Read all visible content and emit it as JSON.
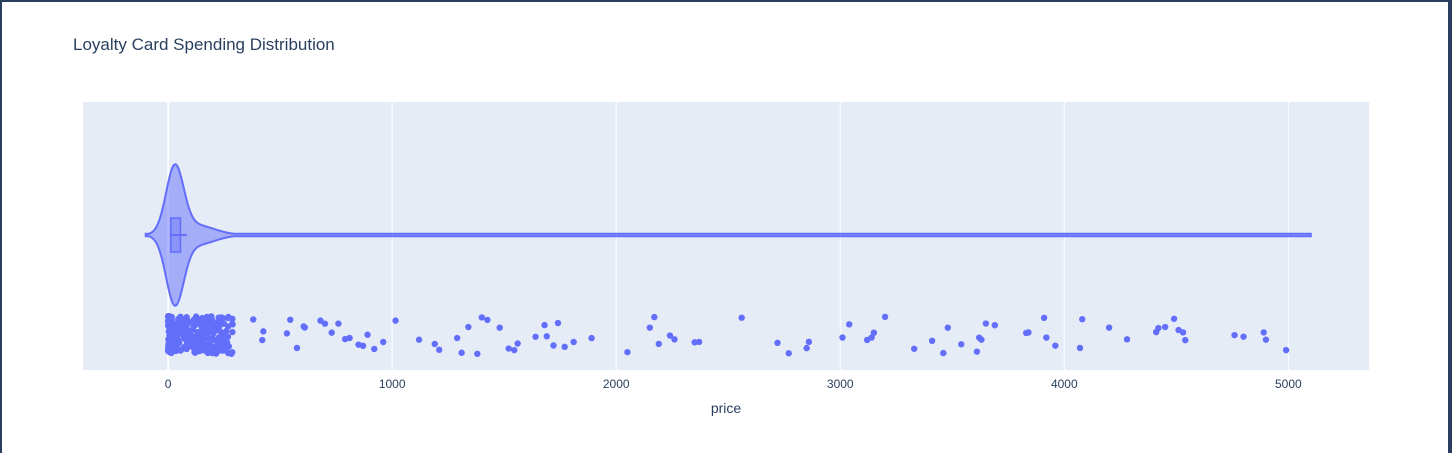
{
  "chart_data": {
    "type": "violin",
    "title": "Loyalty Card Spending Distribution",
    "xlabel": "price",
    "ylabel": "",
    "xlim": [
      -380,
      5360
    ],
    "xticks": [
      0,
      1000,
      2000,
      3000,
      4000,
      5000
    ],
    "xtick_labels": [
      "0",
      "1000",
      "2000",
      "3000",
      "4000",
      "5000"
    ],
    "grid": true,
    "box": {
      "q1": 12,
      "median": 30,
      "q3": 55
    },
    "violin_extent": [
      -100,
      5100
    ],
    "colors": {
      "accent": "#636efa",
      "plot_bg": "#e5ecf6",
      "grid": "#ffffff",
      "text": "#2a3f5f"
    },
    "outlier_points": [
      380,
      420,
      425,
      530,
      545,
      575,
      605,
      610,
      680,
      700,
      730,
      760,
      790,
      810,
      850,
      870,
      890,
      920,
      960,
      1015,
      1120,
      1190,
      1210,
      1290,
      1310,
      1340,
      1380,
      1400,
      1425,
      1480,
      1520,
      1545,
      1560,
      1640,
      1680,
      1690,
      1720,
      1740,
      1770,
      1810,
      1890,
      2050,
      2150,
      2170,
      2190,
      2240,
      2260,
      2350,
      2370,
      2560,
      2720,
      2770,
      2850,
      2860,
      3010,
      3040,
      3120,
      3140,
      3150,
      3200,
      3330,
      3410,
      3460,
      3480,
      3540,
      3610,
      3620,
      3630,
      3650,
      3690,
      3830,
      3840,
      3910,
      3920,
      3960,
      4070,
      4080,
      4200,
      4280,
      4410,
      4420,
      4450,
      4490,
      4510,
      4530,
      4540,
      4760,
      4800,
      4890,
      4900,
      4990
    ]
  }
}
